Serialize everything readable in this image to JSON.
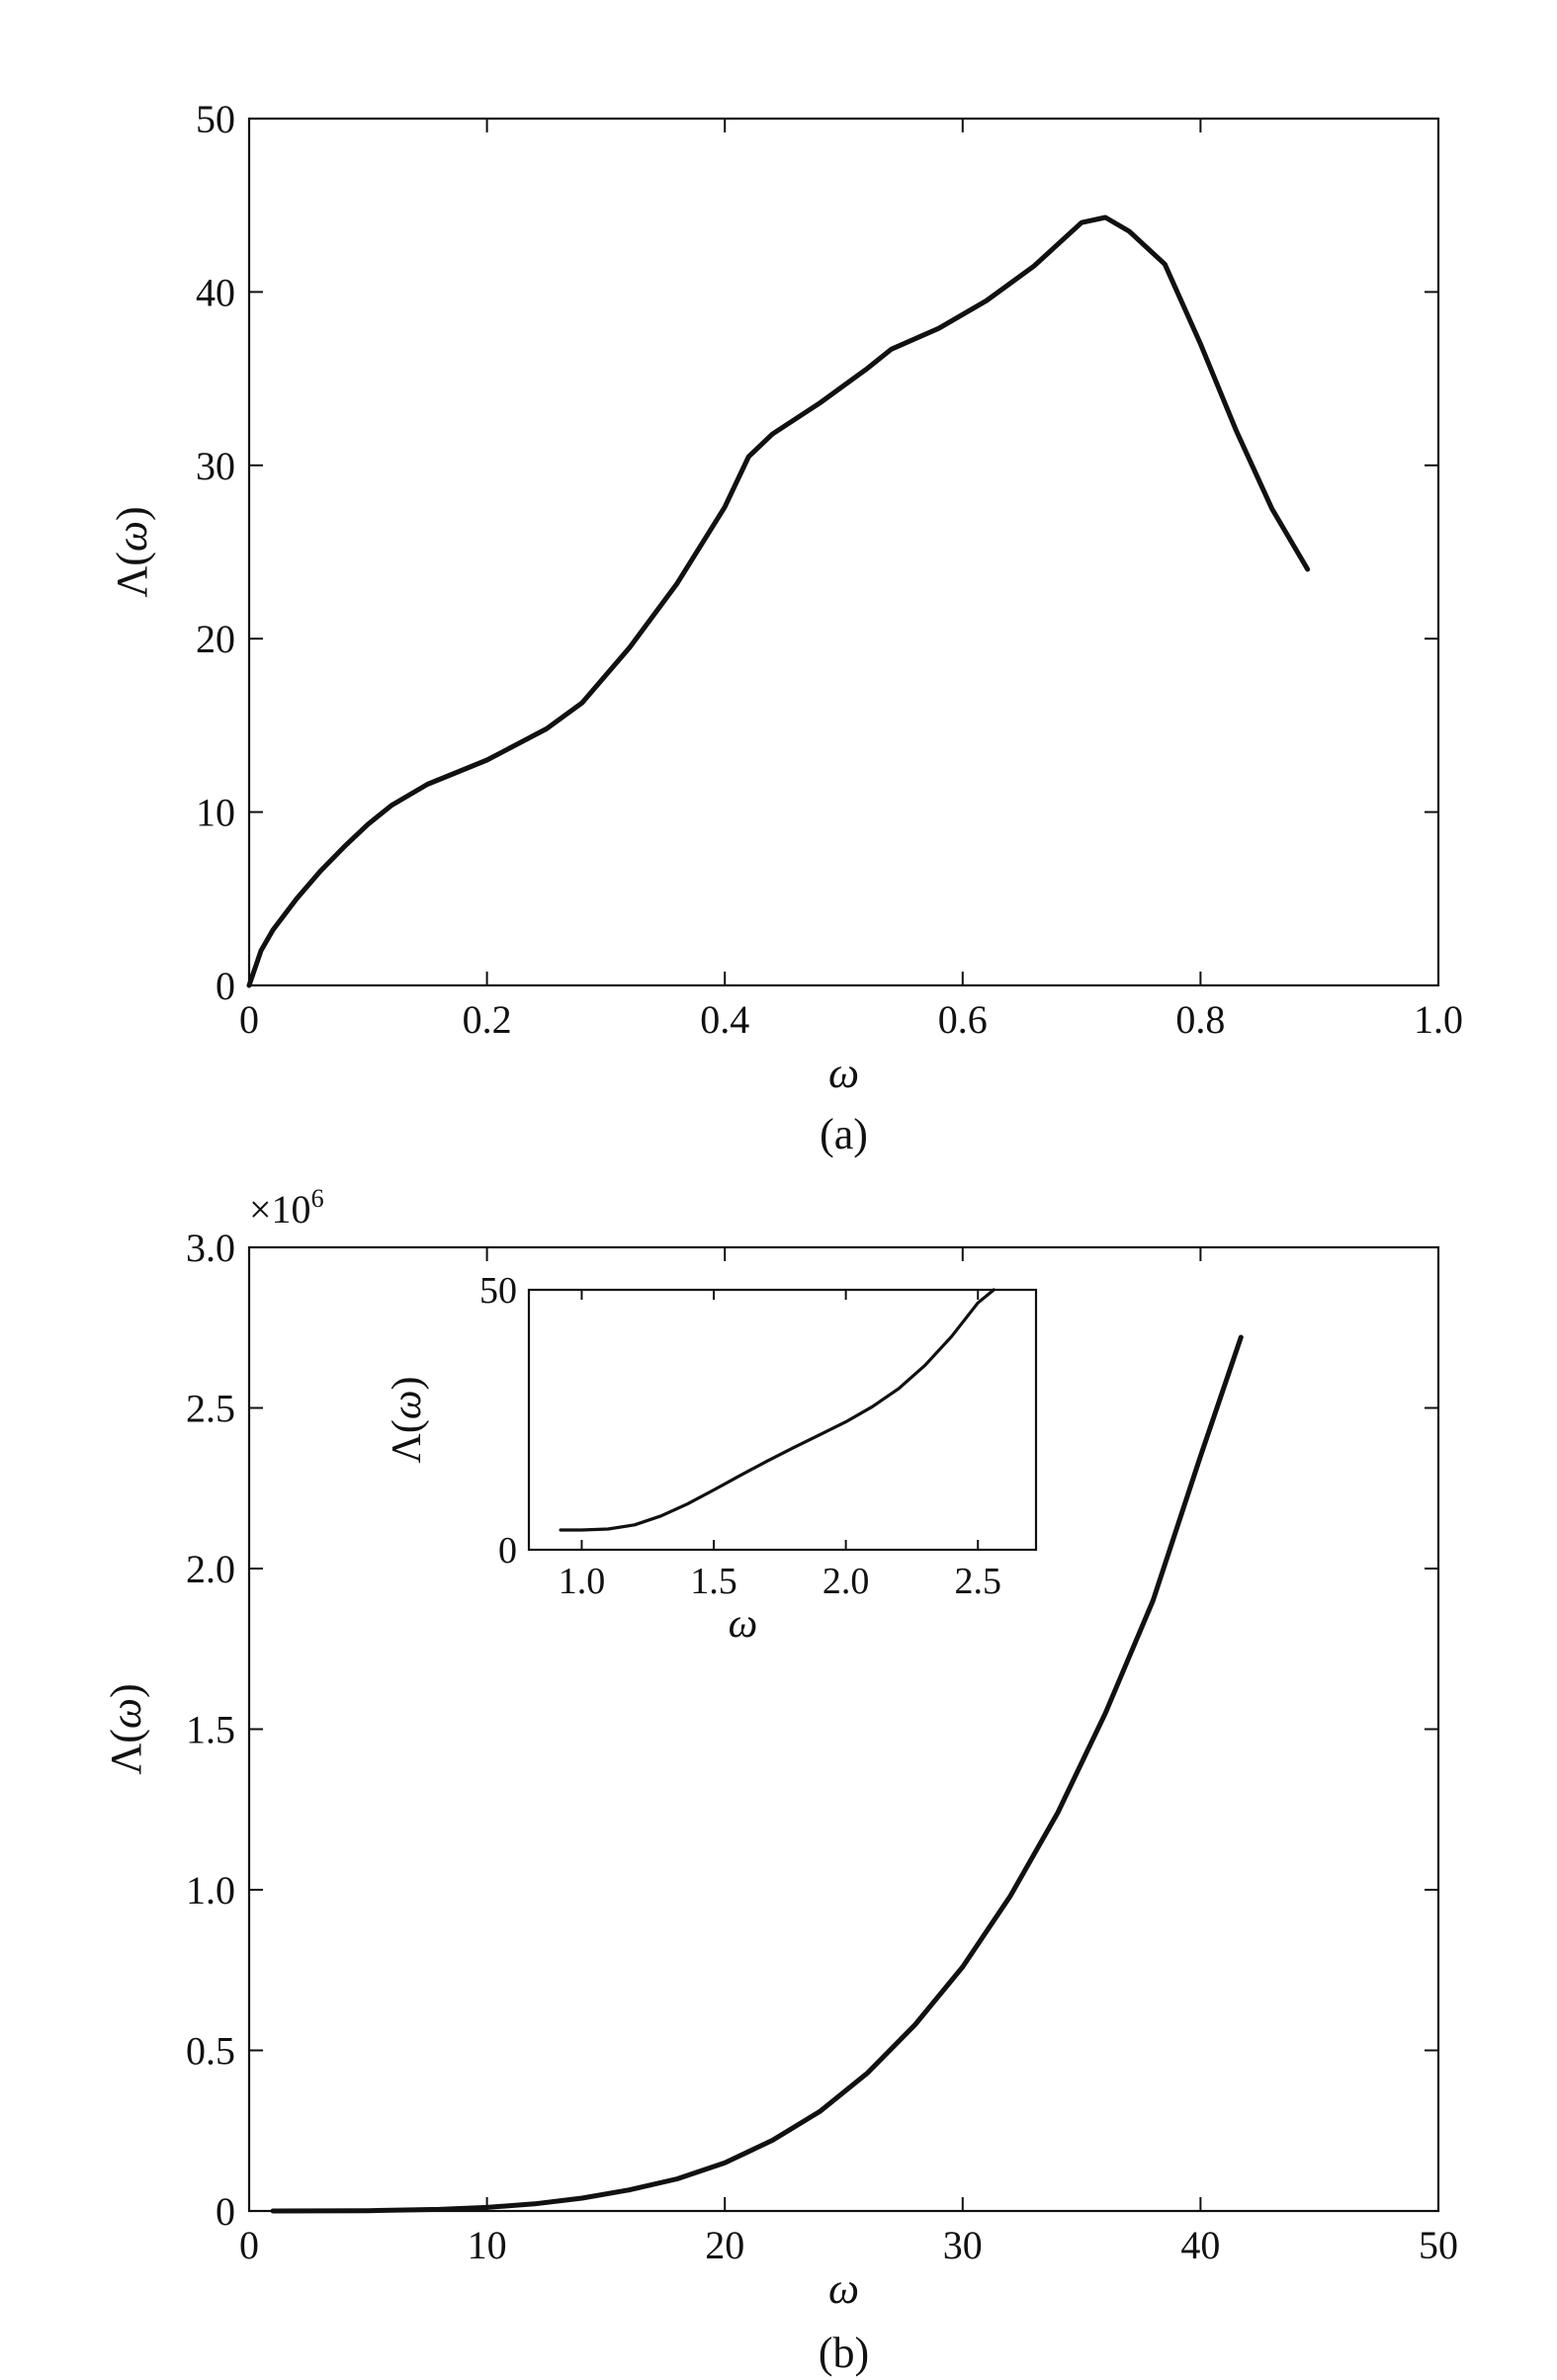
{
  "chart_data": [
    {
      "type": "line",
      "panel": "(a)",
      "title": "",
      "xlabel": "ω",
      "ylabel": "Λ(ω)",
      "xlim": [
        0,
        1.0
      ],
      "ylim": [
        0,
        50
      ],
      "xticks": [
        0,
        0.2,
        0.4,
        0.6,
        0.8,
        1.0
      ],
      "xtick_labels": [
        "0",
        "0.2",
        "0.4",
        "0.6",
        "0.8",
        "1.0"
      ],
      "yticks": [
        0,
        10,
        20,
        30,
        40,
        50
      ],
      "ytick_labels": [
        "0",
        "10",
        "20",
        "30",
        "40",
        "50"
      ],
      "grid": false,
      "series": [
        {
          "x": [
            0,
            0.005,
            0.01,
            0.02,
            0.04,
            0.06,
            0.08,
            0.1,
            0.12,
            0.15,
            0.2,
            0.25,
            0.28,
            0.32,
            0.36,
            0.4,
            0.42,
            0.44,
            0.48,
            0.52,
            0.54,
            0.58,
            0.62,
            0.66,
            0.7,
            0.72,
            0.74,
            0.77,
            0.8,
            0.83,
            0.86,
            0.89
          ],
          "y": [
            0,
            1.0,
            2.0,
            3.2,
            5.0,
            6.6,
            8.0,
            9.3,
            10.4,
            11.6,
            13.0,
            14.8,
            16.3,
            19.5,
            23.2,
            27.6,
            30.5,
            31.8,
            33.6,
            35.6,
            36.7,
            37.9,
            39.5,
            41.5,
            44.0,
            44.3,
            43.5,
            41.6,
            37.0,
            32.0,
            27.5,
            24.0
          ]
        }
      ]
    },
    {
      "type": "line",
      "panel": "(b)",
      "title": "",
      "xlabel": "ω",
      "ylabel": "Λ(ω)",
      "multiplier": "×10",
      "multiplier_exponent": "6",
      "xlim": [
        0,
        50
      ],
      "ylim": [
        0,
        3.0
      ],
      "xticks": [
        0,
        10,
        20,
        30,
        40,
        50
      ],
      "xtick_labels": [
        "0",
        "10",
        "20",
        "30",
        "40",
        "50"
      ],
      "yticks": [
        0,
        0.5,
        1.0,
        1.5,
        2.0,
        2.5,
        3.0
      ],
      "ytick_labels": [
        "0",
        "0.5",
        "1.0",
        "1.5",
        "2.0",
        "2.5",
        "3.0"
      ],
      "grid": false,
      "series": [
        {
          "x": [
            1,
            5,
            8,
            10,
            12,
            14,
            16,
            18,
            20,
            22,
            24,
            26,
            28,
            30,
            32,
            34,
            36,
            38,
            40,
            41.7
          ],
          "y": [
            0,
            0.001,
            0.005,
            0.011,
            0.022,
            0.04,
            0.066,
            0.1,
            0.15,
            0.22,
            0.31,
            0.43,
            0.58,
            0.76,
            0.98,
            1.24,
            1.55,
            1.9,
            2.35,
            2.72
          ]
        }
      ],
      "inset": {
        "type": "line",
        "xlabel": "ω",
        "ylabel": "Λ(ω)",
        "xlim": [
          0.8,
          2.72
        ],
        "ylim": [
          0,
          50
        ],
        "xticks": [
          1.0,
          1.5,
          2.0,
          2.5
        ],
        "xtick_labels": [
          "1.0",
          "1.5",
          "2.0",
          "2.5"
        ],
        "yticks": [
          0,
          50
        ],
        "ytick_labels": [
          "0",
          "50"
        ],
        "series": [
          {
            "x": [
              0.92,
              1.0,
              1.1,
              1.2,
              1.3,
              1.4,
              1.5,
              1.6,
              1.7,
              1.8,
              1.9,
              2.0,
              2.1,
              2.2,
              2.3,
              2.4,
              2.5,
              2.56
            ],
            "y": [
              3.8,
              3.8,
              4.0,
              4.8,
              6.5,
              8.8,
              11.5,
              14.3,
              17.0,
              19.6,
              22.1,
              24.6,
              27.5,
              31.0,
              35.5,
              41.0,
              47.5,
              50.0
            ]
          }
        ]
      }
    }
  ]
}
